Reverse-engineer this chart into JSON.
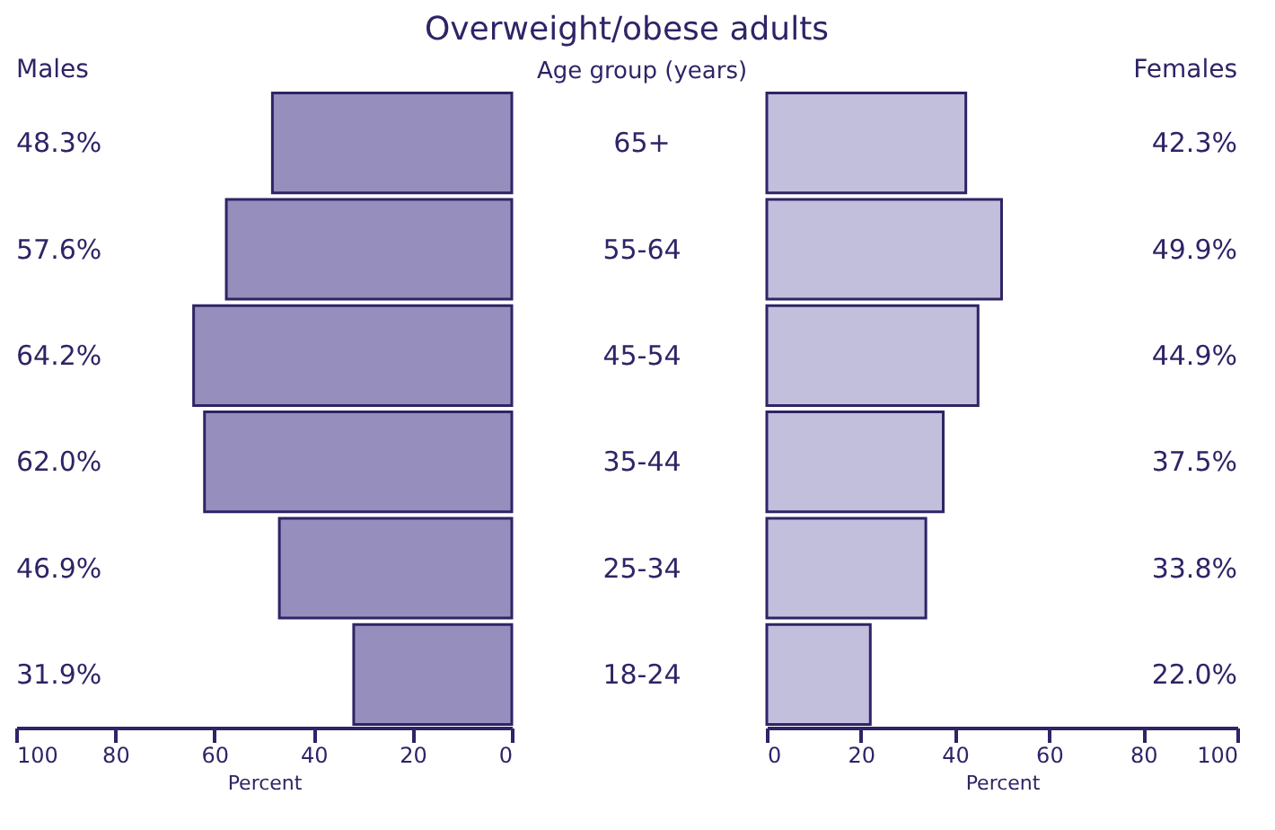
{
  "chart_data": [
    {
      "type": "bar",
      "orientation": "horizontal",
      "title": "Overweight/obese adults",
      "ylabel": "Age group (years)",
      "xlabel": "Percent",
      "categories": [
        "65+",
        "55-64",
        "45-54",
        "35-44",
        "25-34",
        "18-24"
      ],
      "series": [
        {
          "name": "Males",
          "color": "#968fbd",
          "values": [
            48.3,
            57.6,
            64.2,
            62.0,
            46.9,
            31.9
          ],
          "value_labels": [
            "48.3%",
            "57.6%",
            "64.2%",
            "62.0%",
            "46.9%",
            "31.9%"
          ]
        }
      ],
      "xlim": [
        100,
        0
      ],
      "xticks": [
        100,
        80,
        60,
        40,
        20,
        0
      ],
      "grid": false
    },
    {
      "type": "bar",
      "orientation": "horizontal",
      "xlabel": "Percent",
      "categories": [
        null,
        null,
        null,
        null,
        null,
        null
      ],
      "series": [
        {
          "name": "Females",
          "color": "#c2bfdc",
          "values": [
            42.3,
            49.9,
            44.9,
            37.5,
            33.8,
            22.0
          ],
          "value_labels": [
            "42.3%",
            "49.9%",
            "44.9%",
            "37.5%",
            "33.8%",
            "22.0%"
          ]
        }
      ],
      "xlim": [
        0,
        100
      ],
      "xticks": [
        0,
        20,
        40,
        60,
        80,
        100
      ],
      "tick_labels": "x",
      "grid": false
    }
  ]
}
